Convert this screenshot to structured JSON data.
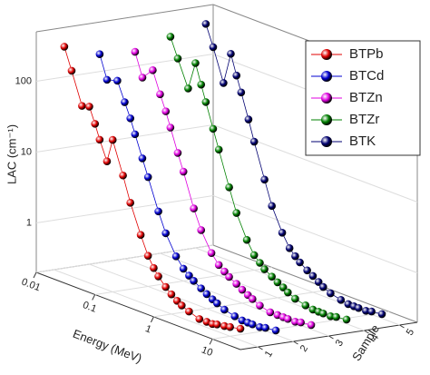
{
  "chart_data": {
    "type": "line3d",
    "y_label": "LAC (cm⁻¹)",
    "x_label": "Energy (MeV)",
    "z_label": "Sample",
    "x": [
      0.015,
      0.02,
      0.03,
      0.04,
      0.05,
      0.06,
      0.08,
      0.1,
      0.15,
      0.2,
      0.3,
      0.4,
      0.5,
      0.6,
      0.8,
      1,
      1.25,
      1.5,
      2,
      3,
      4,
      5,
      6,
      8,
      10,
      15
    ],
    "xlim": [
      0.01,
      30
    ],
    "xticks": [
      0.01,
      0.1,
      1,
      10
    ],
    "xlog": true,
    "ylim": [
      0.2,
      500
    ],
    "yticks": [
      1,
      10,
      100
    ],
    "ylog": true,
    "zlim": [
      0.5,
      5.5
    ],
    "zticks": [
      1,
      2,
      3,
      4,
      5
    ],
    "legend": "upper right",
    "series": [
      {
        "name": "BTPb",
        "color": "#e00000",
        "z": 1,
        "values": [
          320,
          160,
          58,
          62,
          38,
          24,
          13,
          28,
          10,
          4.5,
          1.8,
          1.0,
          0.72,
          0.58,
          0.45,
          0.38,
          0.33,
          0.3,
          0.27,
          0.24,
          0.24,
          0.24,
          0.25,
          0.26,
          0.27,
          0.29
        ]
      },
      {
        "name": "BTCd",
        "color": "#0000d0",
        "z": 2,
        "values": [
          210,
          100,
          110,
          60,
          38,
          24,
          12,
          7,
          2.6,
          1.4,
          0.75,
          0.55,
          0.47,
          0.42,
          0.36,
          0.32,
          0.29,
          0.27,
          0.24,
          0.22,
          0.21,
          0.21,
          0.21,
          0.21,
          0.22,
          0.23
        ]
      },
      {
        "name": "BTZn",
        "color": "#e000e0",
        "z": 3,
        "values": [
          190,
          90,
          130,
          65,
          40,
          25,
          12,
          7,
          2.4,
          1.3,
          0.7,
          0.52,
          0.45,
          0.4,
          0.35,
          0.31,
          0.28,
          0.26,
          0.23,
          0.21,
          0.21,
          0.21,
          0.21,
          0.21,
          0.22,
          0.23
        ]
      },
      {
        "name": "BTZr",
        "color": "#008000",
        "z": 4,
        "values": [
          260,
          140,
          60,
          150,
          80,
          48,
          22,
          12,
          4,
          1.9,
          0.9,
          0.6,
          0.5,
          0.43,
          0.37,
          0.33,
          0.3,
          0.27,
          0.24,
          0.22,
          0.21,
          0.21,
          0.21,
          0.21,
          0.22,
          0.23
        ]
      },
      {
        "name": "BTK",
        "color": "#000070",
        "z": 5,
        "values": [
          330,
          170,
          60,
          170,
          90,
          55,
          25,
          13,
          4.3,
          2,
          0.95,
          0.63,
          0.52,
          0.45,
          0.38,
          0.34,
          0.3,
          0.27,
          0.24,
          0.22,
          0.21,
          0.21,
          0.21,
          0.21,
          0.22,
          0.23
        ]
      }
    ]
  }
}
